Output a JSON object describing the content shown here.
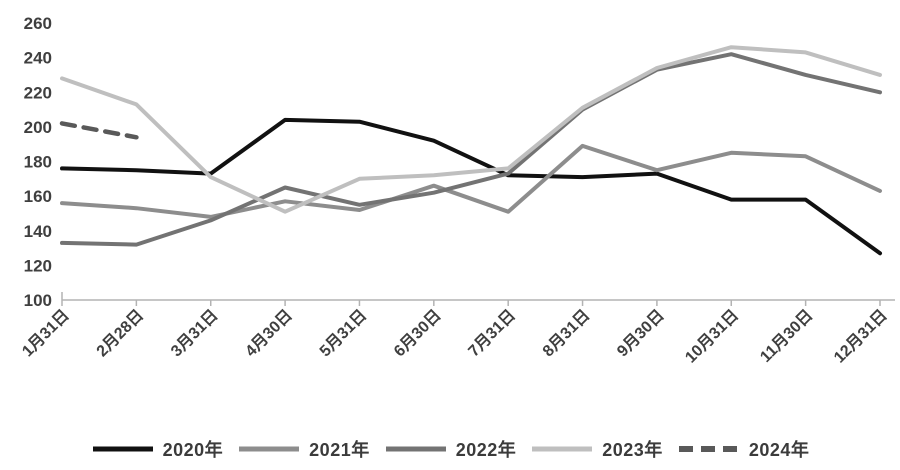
{
  "chart_data": {
    "type": "line",
    "title": "",
    "xlabel": "",
    "ylabel": "",
    "ylim": [
      100,
      260
    ],
    "y_ticks": [
      100,
      120,
      140,
      160,
      180,
      200,
      220,
      240,
      260
    ],
    "grid": false,
    "legend_position": "bottom",
    "categories": [
      "1月31日",
      "2月28日",
      "3月31日",
      "4月30日",
      "5月31日",
      "6月30日",
      "7月31日",
      "8月31日",
      "9月30日",
      "10月31日",
      "11月30日",
      "12月31日"
    ],
    "series": [
      {
        "name": "2020年",
        "color": "#111111",
        "dash": "",
        "width": 4,
        "values": [
          176,
          175,
          173,
          204,
          203,
          192,
          172,
          171,
          173,
          158,
          158,
          127
        ]
      },
      {
        "name": "2021年",
        "color": "#8d8d8d",
        "dash": "",
        "width": 4,
        "values": [
          156,
          153,
          148,
          157,
          152,
          166,
          151,
          189,
          175,
          185,
          183,
          163
        ]
      },
      {
        "name": "2022年",
        "color": "#737373",
        "dash": "",
        "width": 4,
        "values": [
          133,
          132,
          146,
          165,
          155,
          162,
          173,
          210,
          233,
          242,
          230,
          220
        ]
      },
      {
        "name": "2023年",
        "color": "#bfbfbf",
        "dash": "",
        "width": 4,
        "values": [
          228,
          213,
          171,
          151,
          170,
          172,
          176,
          211,
          234,
          246,
          243,
          230
        ]
      },
      {
        "name": "2024年",
        "color": "#595959",
        "dash": "13 9",
        "width": 4.5,
        "values": [
          202,
          194,
          null,
          null,
          null,
          null,
          null,
          null,
          null,
          null,
          null,
          null
        ]
      }
    ],
    "axis_color": "#b3b3b3",
    "tick_label_color": "#3f3f3f"
  }
}
